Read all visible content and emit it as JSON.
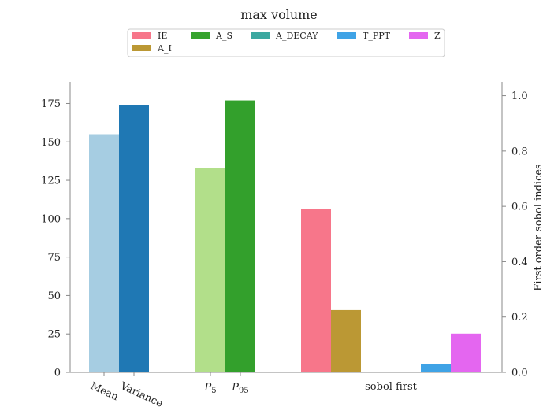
{
  "chart_data": {
    "type": "bar",
    "title": "max volume",
    "legend": {
      "placement": "top-center",
      "entries": [
        {
          "label": "IE",
          "color": "#f7768a"
        },
        {
          "label": "A_S",
          "color": "#36a32e"
        },
        {
          "label": "A_DECAY",
          "color": "#3ba8a0"
        },
        {
          "label": "T_PPT",
          "color": "#3fa3e6"
        },
        {
          "label": "Z",
          "color": "#e466f0"
        },
        {
          "label": "A_I",
          "color": "#bb9834"
        }
      ]
    },
    "left_axis": {
      "ylim": [
        0,
        186
      ],
      "ticks": [
        0,
        25,
        50,
        75,
        100,
        125,
        150,
        175
      ],
      "label": ""
    },
    "right_axis": {
      "ylim": [
        0,
        1.05
      ],
      "ticks": [
        "0.0",
        "0.2",
        "0.4",
        "0.6",
        "0.8",
        "1.0"
      ],
      "label": "First order sobol indices"
    },
    "groups": [
      {
        "axis": "left",
        "bars": [
          {
            "label": "Mean",
            "value": 155,
            "color": "#a6cde2"
          },
          {
            "label": "Variance",
            "value": 174,
            "color": "#1f78b4"
          }
        ]
      },
      {
        "axis": "left",
        "bars": [
          {
            "label": "P5",
            "value": 133,
            "color": "#b2df8a"
          },
          {
            "label": "P95",
            "value": 177,
            "color": "#33a02c"
          }
        ]
      },
      {
        "axis": "right",
        "group_label": "sobol first",
        "bars": [
          {
            "label": "IE",
            "value": 0.59,
            "color": "#f7768a"
          },
          {
            "label": "A_I",
            "value": 0.225,
            "color": "#bb9834"
          },
          {
            "label": "A_S",
            "value": 0.0,
            "color": "#36a32e"
          },
          {
            "label": "A_DECAY",
            "value": 0.0,
            "color": "#3ba8a0"
          },
          {
            "label": "T_PPT",
            "value": 0.03,
            "color": "#3fa3e6"
          },
          {
            "label": "Z",
            "value": 0.14,
            "color": "#e466f0"
          }
        ]
      }
    ],
    "grid": false
  }
}
